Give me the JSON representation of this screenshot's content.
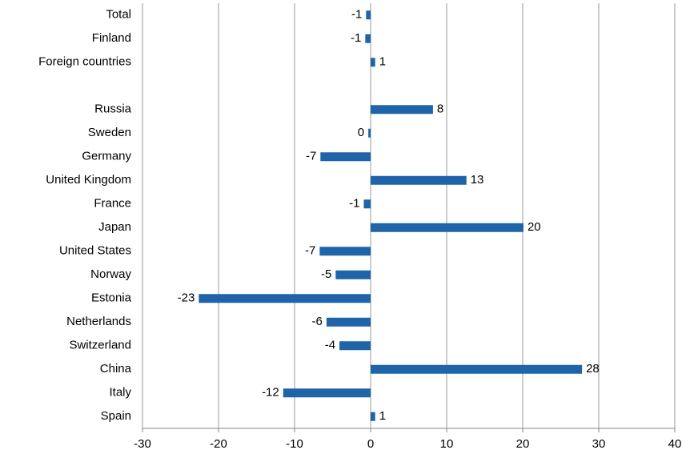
{
  "chart_data": {
    "type": "barh",
    "categories": [
      "Total",
      "Finland",
      "Foreign countries",
      null,
      "Russia",
      "Sweden",
      "Germany",
      "United Kingdom",
      "France",
      "Japan",
      "United States",
      "Norway",
      "Estonia",
      "Netherlands",
      "Switzerland",
      "China",
      "Italy",
      "Spain"
    ],
    "values": [
      -0.6,
      -0.7,
      0.6,
      null,
      8.2,
      -0.3,
      -6.6,
      12.6,
      -0.9,
      20.1,
      -6.7,
      -4.6,
      -22.6,
      -5.8,
      -4.1,
      27.8,
      -11.5,
      0.6
    ],
    "value_labels": [
      "-1",
      "-1",
      "1",
      null,
      "8",
      "0",
      "-7",
      "13",
      "-1",
      "20",
      "-7",
      "-5",
      "-23",
      "-6",
      "-4",
      "28",
      "-12",
      "1"
    ],
    "color": "#1f63a8",
    "xlim": [
      -30,
      40
    ],
    "xticks": [
      -30,
      -20,
      -10,
      0,
      10,
      20,
      30,
      40
    ],
    "grid": true
  }
}
